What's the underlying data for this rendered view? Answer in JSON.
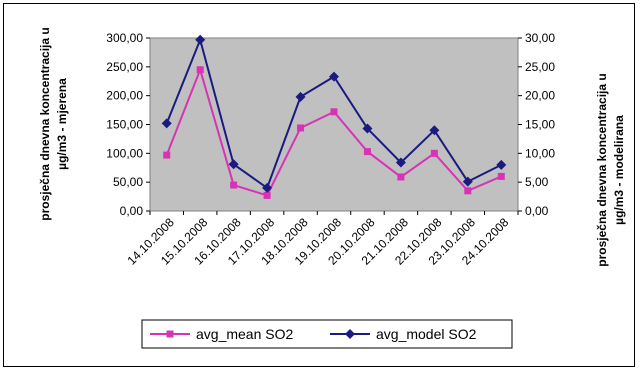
{
  "chart_data": {
    "type": "line",
    "categories": [
      "14.10.2008",
      "15.10.2008",
      "16.10.2008",
      "17.10.2008",
      "18.10.2008",
      "19.10.2008",
      "20.10.2008",
      "21.10.2008",
      "22.10.2008",
      "23.10.2008",
      "24.10.2008"
    ],
    "series": [
      {
        "name": "avg_mean SO2",
        "axis": "left",
        "color": "#d633b5",
        "marker": "square",
        "values": [
          97,
          245,
          45,
          27,
          144,
          172,
          103,
          59,
          100,
          35,
          60
        ]
      },
      {
        "name": "avg_model SO2",
        "axis": "right",
        "color": "#1a1a80",
        "marker": "diamond",
        "values": [
          15.2,
          29.7,
          8.1,
          4.0,
          19.8,
          23.3,
          14.3,
          8.4,
          14.0,
          5.1,
          8.0
        ]
      }
    ],
    "ylabel_left": [
      "prosječna dnevna koncentracija u",
      "µg/m3 - mjerena"
    ],
    "ylabel_right": [
      "prosječna dnevna koncentracija u",
      "µg/m3 - modelirana"
    ],
    "ylim_left": [
      0,
      300
    ],
    "ylim_right": [
      0,
      30
    ],
    "yticks_left": [
      "0,00",
      "50,00",
      "100,00",
      "150,00",
      "200,00",
      "250,00",
      "300,00"
    ],
    "yticks_right": [
      "0,00",
      "5,00",
      "10,00",
      "15,00",
      "20,00",
      "25,00",
      "30,00"
    ],
    "plot_background": "#c0c0c0",
    "grid": false,
    "legend_position": "bottom"
  }
}
